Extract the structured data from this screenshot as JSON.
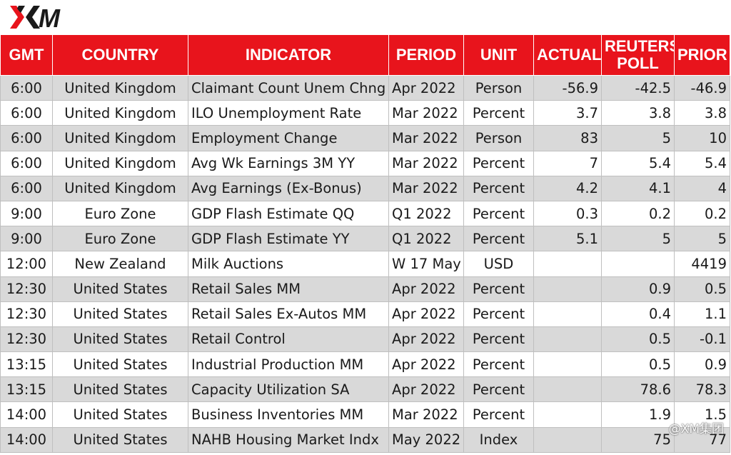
{
  "brand": {
    "logo_text": "XM",
    "accent": "#e8141c"
  },
  "table": {
    "headers": {
      "gmt": "GMT",
      "country": "COUNTRY",
      "indicator": "INDICATOR",
      "period": "PERIOD",
      "unit": "UNIT",
      "actual": "ACTUAL",
      "reuters_line1": "REUTERS",
      "reuters_line2": "POLL",
      "prior": "PRIOR"
    },
    "rows": [
      {
        "gmt": "6:00",
        "country": "United Kingdom",
        "indicator": "Claimant Count Unem Chng",
        "period": "Apr 2022",
        "unit": "Person",
        "actual": "-56.9",
        "poll": "-42.5",
        "prior": "-46.9"
      },
      {
        "gmt": "6:00",
        "country": "United Kingdom",
        "indicator": "ILO Unemployment Rate",
        "period": "Mar 2022",
        "unit": "Percent",
        "actual": "3.7",
        "poll": "3.8",
        "prior": "3.8"
      },
      {
        "gmt": "6:00",
        "country": "United Kingdom",
        "indicator": "Employment Change",
        "period": "Mar 2022",
        "unit": "Person",
        "actual": "83",
        "poll": "5",
        "prior": "10"
      },
      {
        "gmt": "6:00",
        "country": "United Kingdom",
        "indicator": "Avg Wk Earnings 3M YY",
        "period": "Mar 2022",
        "unit": "Percent",
        "actual": "7",
        "poll": "5.4",
        "prior": "5.4"
      },
      {
        "gmt": "6:00",
        "country": "United Kingdom",
        "indicator": "Avg Earnings (Ex-Bonus)",
        "period": "Mar 2022",
        "unit": "Percent",
        "actual": "4.2",
        "poll": "4.1",
        "prior": "4"
      },
      {
        "gmt": "9:00",
        "country": "Euro Zone",
        "indicator": "GDP Flash Estimate QQ",
        "period": "Q1 2022",
        "unit": "Percent",
        "actual": "0.3",
        "poll": "0.2",
        "prior": "0.2"
      },
      {
        "gmt": "9:00",
        "country": "Euro Zone",
        "indicator": "GDP Flash Estimate YY",
        "period": "Q1 2022",
        "unit": "Percent",
        "actual": "5.1",
        "poll": "5",
        "prior": "5"
      },
      {
        "gmt": "12:00",
        "country": "New Zealand",
        "indicator": "Milk Auctions",
        "period": "W 17 May",
        "unit": "USD",
        "actual": "",
        "poll": "",
        "prior": "4419"
      },
      {
        "gmt": "12:30",
        "country": "United States",
        "indicator": "Retail Sales MM",
        "period": "Apr 2022",
        "unit": "Percent",
        "actual": "",
        "poll": "0.9",
        "prior": "0.5"
      },
      {
        "gmt": "12:30",
        "country": "United States",
        "indicator": "Retail Sales Ex-Autos MM",
        "period": "Apr 2022",
        "unit": "Percent",
        "actual": "",
        "poll": "0.4",
        "prior": "1.1"
      },
      {
        "gmt": "12:30",
        "country": "United States",
        "indicator": "Retail Control",
        "period": "Apr 2022",
        "unit": "Percent",
        "actual": "",
        "poll": "0.5",
        "prior": "-0.1"
      },
      {
        "gmt": "13:15",
        "country": "United States",
        "indicator": "Industrial Production MM",
        "period": "Apr 2022",
        "unit": "Percent",
        "actual": "",
        "poll": "0.5",
        "prior": "0.9"
      },
      {
        "gmt": "13:15",
        "country": "United States",
        "indicator": "Capacity Utilization SA",
        "period": "Apr 2022",
        "unit": "Percent",
        "actual": "",
        "poll": "78.6",
        "prior": "78.3"
      },
      {
        "gmt": "14:00",
        "country": "United States",
        "indicator": "Business Inventories MM",
        "period": "Mar 2022",
        "unit": "Percent",
        "actual": "",
        "poll": "1.9",
        "prior": "1.5"
      },
      {
        "gmt": "14:00",
        "country": "United States",
        "indicator": "NAHB Housing Market Indx",
        "period": "May 2022",
        "unit": "Index",
        "actual": "",
        "poll": "75",
        "prior": "77"
      }
    ]
  },
  "watermark": "@XM集团"
}
